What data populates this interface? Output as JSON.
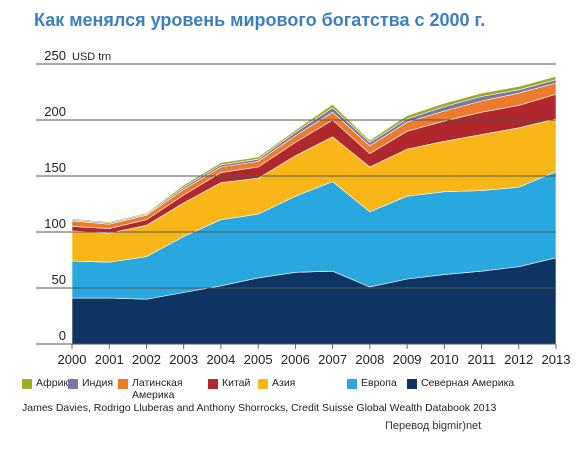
{
  "chart_data": {
    "type": "area",
    "stacked": true,
    "title": "Как менялся уровень мирового богатства с 2000 г.",
    "y_unit": "USD trn",
    "ylim": [
      0,
      250
    ],
    "y_ticks": [
      0,
      50,
      100,
      150,
      200,
      250
    ],
    "grid": "horizontal",
    "legend_position": "bottom",
    "x": [
      "2000",
      "2001",
      "2002",
      "2003",
      "2004",
      "2005",
      "2006",
      "2007",
      "2008",
      "2009",
      "2010",
      "2011",
      "2012",
      "2013"
    ],
    "series": [
      {
        "name": "Северная Америка",
        "color": "#0d3462",
        "values": [
          41,
          41,
          40,
          46,
          52,
          59,
          64,
          65,
          51,
          58,
          62,
          65,
          69,
          77
        ]
      },
      {
        "name": "Европа",
        "color": "#29a8e0",
        "values": [
          33,
          32,
          38,
          50,
          59,
          57,
          68,
          80,
          67,
          74,
          74,
          72,
          71,
          77
        ]
      },
      {
        "name": "Азия",
        "color": "#f8b619",
        "values": [
          27,
          26,
          28,
          30,
          33,
          32,
          36,
          40,
          40,
          42,
          45,
          50,
          53,
          47
        ]
      },
      {
        "name": "Китай",
        "color": "#b0282d",
        "values": [
          4,
          4,
          5,
          7,
          9,
          10,
          12,
          15,
          12,
          16,
          18,
          20,
          20,
          22
        ]
      },
      {
        "name": "Латинская\nАмерика",
        "color": "#ec7b2b",
        "values": [
          5,
          4,
          4,
          5,
          5,
          5,
          6,
          7,
          7,
          8,
          9,
          10,
          11,
          10
        ]
      },
      {
        "name": "Индия",
        "color": "#7878a0",
        "values": [
          1,
          1,
          1,
          2,
          2,
          2,
          3,
          4,
          3,
          3,
          4,
          4,
          3,
          3
        ]
      },
      {
        "name": "Африка",
        "color": "#a0aa28",
        "values": [
          1,
          1,
          1,
          2,
          2,
          2,
          2,
          3,
          2,
          3,
          3,
          3,
          3,
          3
        ]
      }
    ]
  },
  "legend_order": [
    6,
    5,
    4,
    3,
    2,
    1,
    0
  ],
  "source": "James Davies, Rodrigo Lluberas and Anthony Shorrocks, Credit Suisse Global Wealth Databook 2013",
  "credit": "Перевод bigmir)net"
}
